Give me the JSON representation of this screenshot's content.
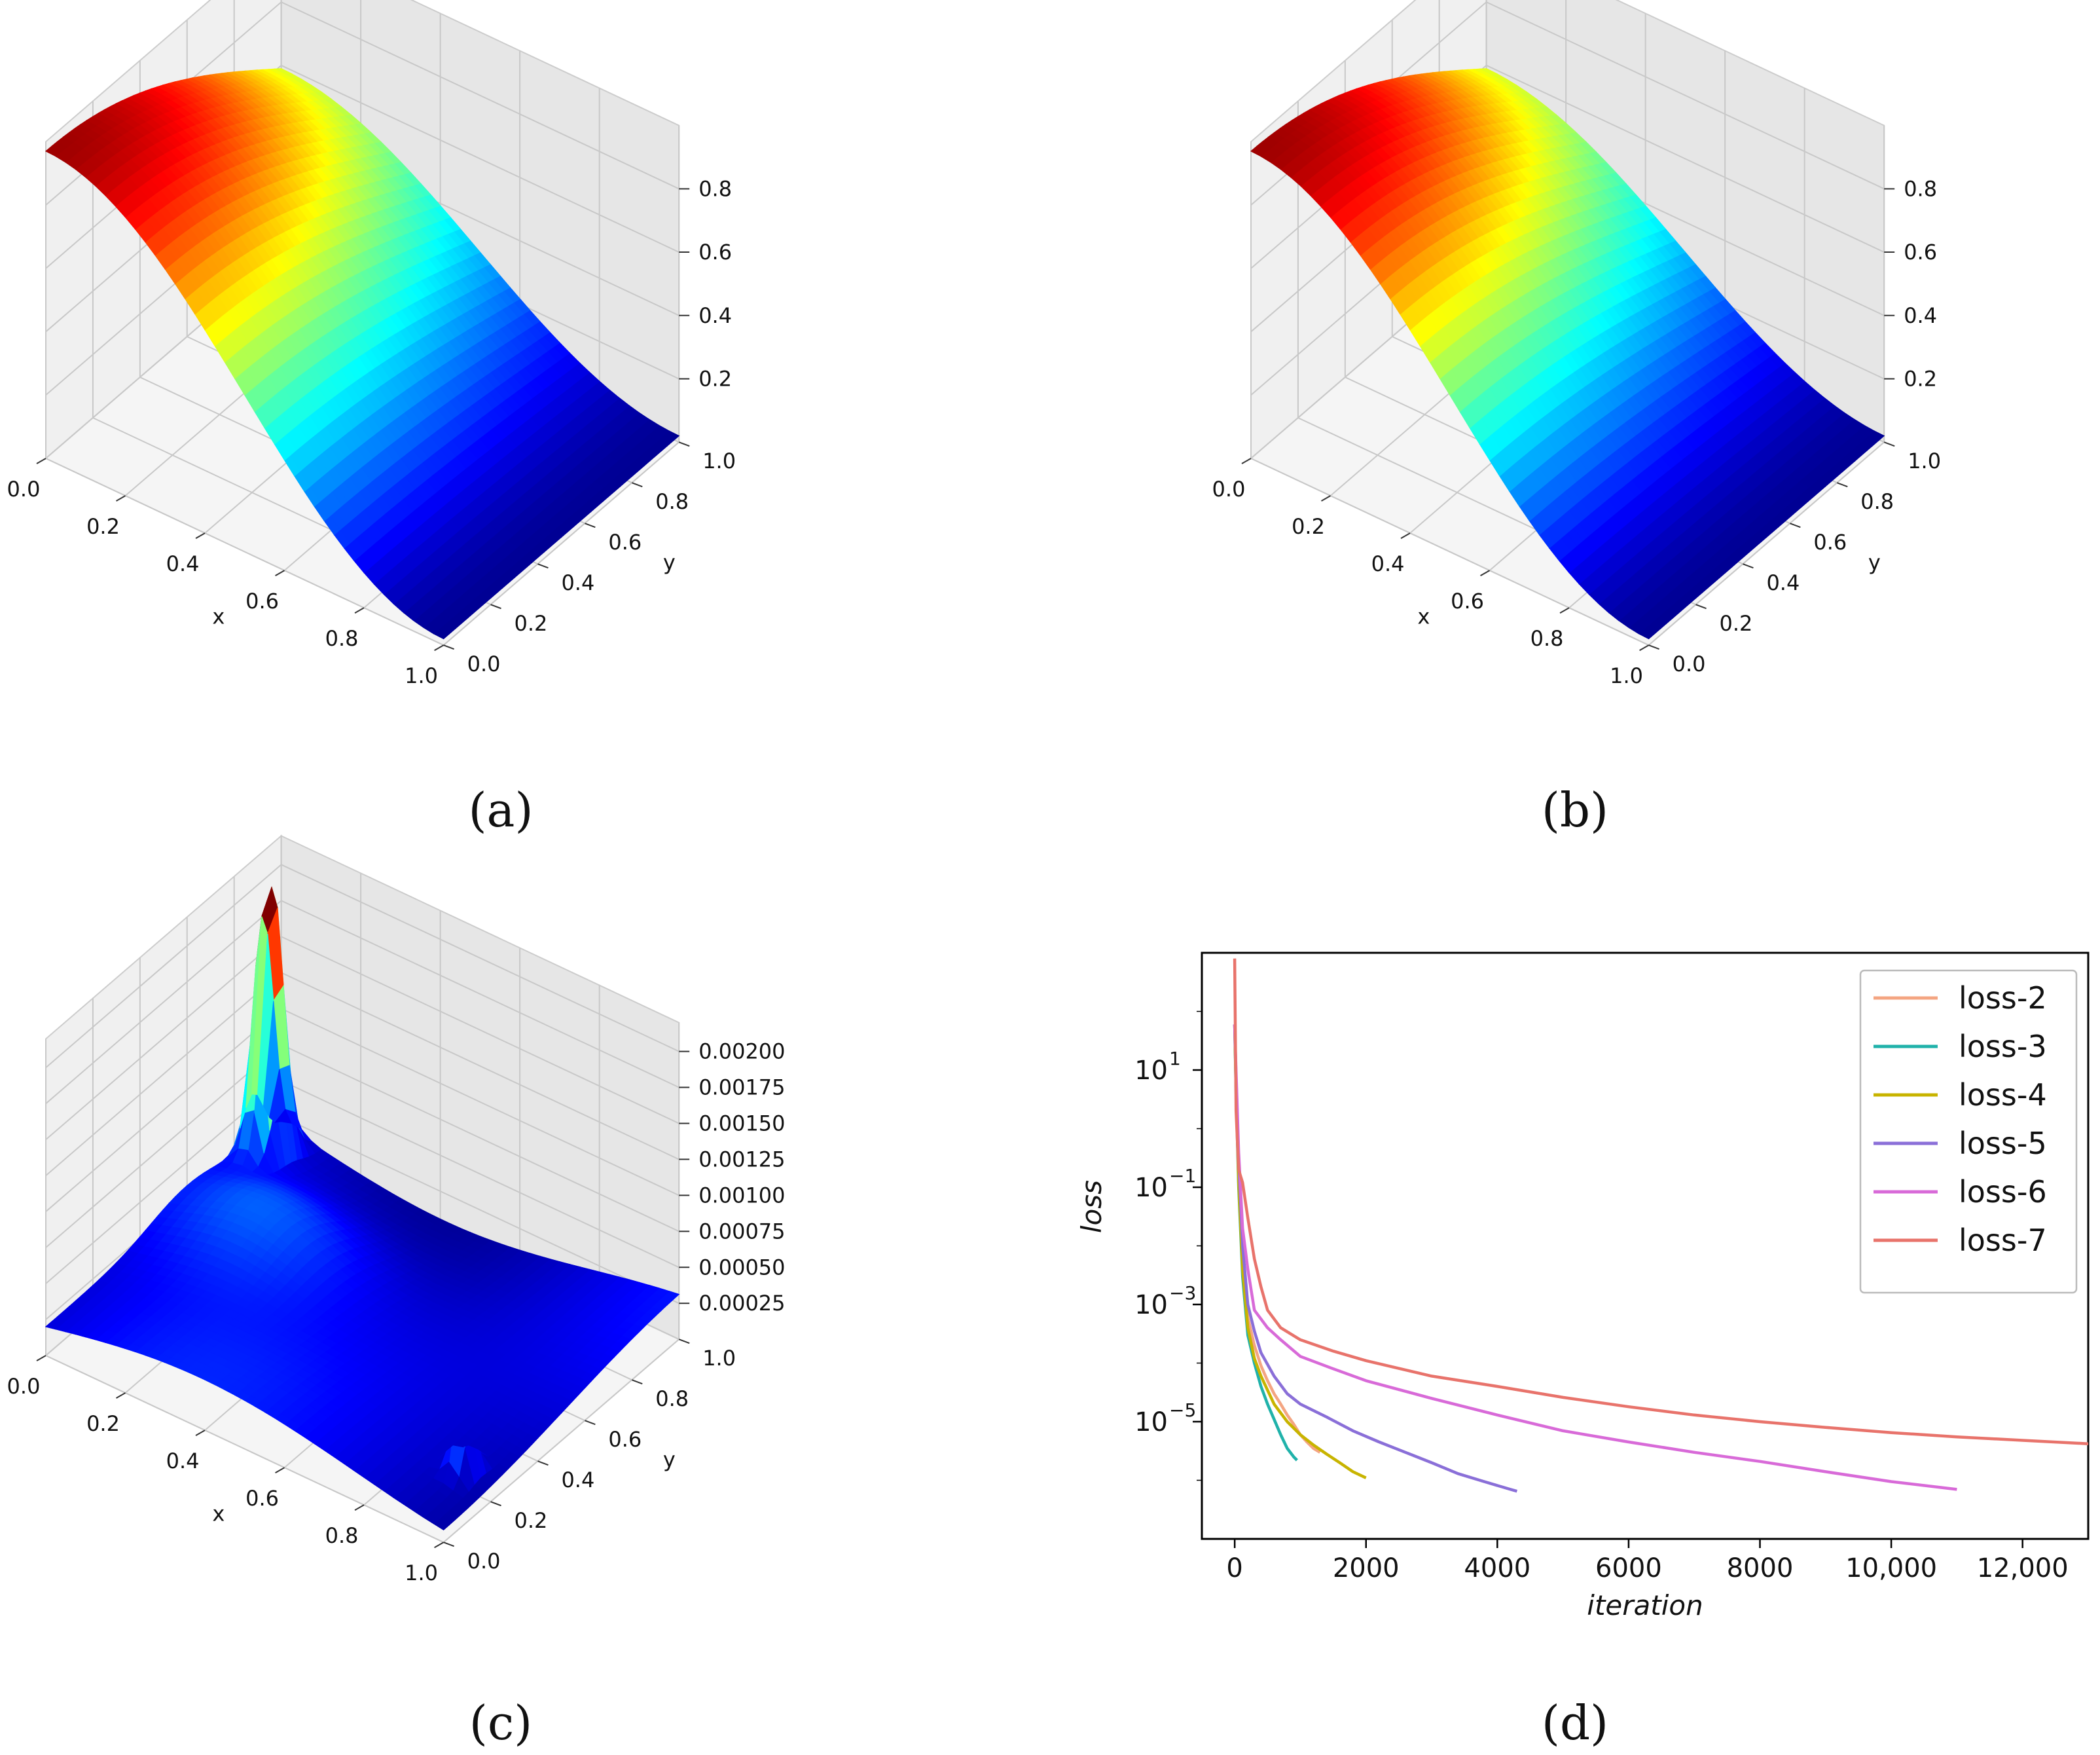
{
  "panels": {
    "a": {
      "caption": "(a)",
      "xlabel": "x",
      "ylabel": "y",
      "xticks": [
        "0.0",
        "0.2",
        "0.4",
        "0.6",
        "0.8",
        "1.0"
      ],
      "yticks": [
        "0.0",
        "0.2",
        "0.4",
        "0.6",
        "0.8",
        "1.0"
      ],
      "zticks": [
        "0.2",
        "0.4",
        "0.6",
        "0.8"
      ]
    },
    "b": {
      "caption": "(b)",
      "xlabel": "x",
      "ylabel": "y",
      "xticks": [
        "0.0",
        "0.2",
        "0.4",
        "0.6",
        "0.8",
        "1.0"
      ],
      "yticks": [
        "0.0",
        "0.2",
        "0.4",
        "0.6",
        "0.8",
        "1.0"
      ],
      "zticks": [
        "0.2",
        "0.4",
        "0.6",
        "0.8"
      ]
    },
    "c": {
      "caption": "(c)",
      "xlabel": "x",
      "ylabel": "y",
      "xticks": [
        "0.0",
        "0.2",
        "0.4",
        "0.6",
        "0.8",
        "1.0"
      ],
      "yticks": [
        "0.0",
        "0.2",
        "0.4",
        "0.6",
        "0.8",
        "1.0"
      ],
      "zticks": [
        "0.00025",
        "0.00050",
        "0.00075",
        "0.00100",
        "0.00125",
        "0.00150",
        "0.00175",
        "0.00200"
      ]
    },
    "d": {
      "caption": "(d)"
    }
  },
  "chart_data": [
    {
      "type": "area",
      "panel": "a",
      "xlabel": "x",
      "ylabel": "y",
      "xlim": [
        0,
        1
      ],
      "ylim": [
        0,
        1
      ],
      "zlim": [
        0,
        1
      ],
      "colormap": "jet"
    },
    {
      "type": "area",
      "panel": "b",
      "xlabel": "x",
      "ylabel": "y",
      "xlim": [
        0,
        1
      ],
      "ylim": [
        0,
        1
      ],
      "zlim": [
        0,
        1
      ],
      "colormap": "jet"
    },
    {
      "type": "area",
      "panel": "c",
      "xlabel": "x",
      "ylabel": "y",
      "xlim": [
        0,
        1
      ],
      "ylim": [
        0,
        1
      ],
      "zlim": [
        0,
        0.0021
      ],
      "zmax": 0.0021,
      "colormap": "jet"
    },
    {
      "type": "line",
      "panel": "d",
      "xlabel": "iteration",
      "ylabel": "loss",
      "xlim": [
        -500,
        13000
      ],
      "ylim": [
        1e-07,
        1000.0
      ],
      "yscale": "log",
      "xticks": [
        "0",
        "2000",
        "4000",
        "6000",
        "8000",
        "10,000",
        "12,000"
      ],
      "xtick_values": [
        0,
        2000,
        4000,
        6000,
        8000,
        10000,
        12000
      ],
      "yticks_base": [
        "10",
        "10",
        "10",
        "10"
      ],
      "yticks_exp": [
        "1",
        "−1",
        "−3",
        "−5"
      ],
      "ytick_values": [
        10,
        0.1,
        0.001,
        1e-05
      ],
      "legend_position": "top-right",
      "series": [
        {
          "name": "loss-2",
          "color": "#f4a582",
          "x": [
            0,
            20,
            60,
            120,
            200,
            300,
            400,
            500,
            600,
            700,
            800,
            900,
            1000,
            1100,
            1200,
            1300
          ],
          "y": [
            60,
            5,
            0.15,
            0.005,
            0.0006,
            0.0002,
            9e-05,
            5e-05,
            3e-05,
            2e-05,
            1.3e-05,
            9e-06,
            6e-06,
            4.5e-06,
            3.5e-06,
            3e-06
          ]
        },
        {
          "name": "loss-3",
          "color": "#20b2aa",
          "x": [
            0,
            20,
            60,
            120,
            200,
            300,
            400,
            500,
            600,
            700,
            800,
            900,
            950
          ],
          "y": [
            60,
            4,
            0.1,
            0.003,
            0.0003,
            0.0001,
            4e-05,
            2e-05,
            1.1e-05,
            6e-06,
            3.5e-06,
            2.5e-06,
            2.2e-06
          ]
        },
        {
          "name": "loss-4",
          "color": "#c8b400",
          "x": [
            0,
            20,
            60,
            120,
            200,
            300,
            400,
            600,
            800,
            1000,
            1200,
            1400,
            1600,
            1800,
            2000
          ],
          "y": [
            60,
            5,
            0.12,
            0.004,
            0.0004,
            0.00012,
            6e-05,
            2e-05,
            1e-05,
            6e-06,
            4e-06,
            2.8e-06,
            2e-06,
            1.4e-06,
            1.1e-06
          ]
        },
        {
          "name": "loss-5",
          "color": "#8a6fd8",
          "x": [
            0,
            20,
            60,
            120,
            200,
            300,
            400,
            600,
            800,
            1000,
            1400,
            1800,
            2200,
            2600,
            3000,
            3400,
            3800,
            4200,
            4300
          ],
          "y": [
            60,
            8,
            0.3,
            0.01,
            0.001,
            0.00035,
            0.00015,
            6e-05,
            3e-05,
            2e-05,
            1.2e-05,
            7e-06,
            4.5e-06,
            3e-06,
            2e-06,
            1.3e-06,
            9.5e-07,
            7e-07,
            6.5e-07
          ]
        },
        {
          "name": "loss-6",
          "color": "#d86ad8",
          "x": [
            0,
            20,
            60,
            120,
            200,
            300,
            500,
            700,
            1000,
            1500,
            2000,
            3000,
            4000,
            5000,
            6000,
            7000,
            8000,
            9000,
            10000,
            11000
          ],
          "y": [
            60,
            10,
            0.4,
            0.02,
            0.004,
            0.0008,
            0.0004,
            0.00025,
            0.00013,
            8e-05,
            5e-05,
            2.5e-05,
            1.3e-05,
            7e-06,
            4.5e-06,
            3e-06,
            2.1e-06,
            1.4e-06,
            9.5e-07,
            7e-07
          ]
        },
        {
          "name": "loss-7",
          "color": "#e8736b",
          "x": [
            0,
            20,
            60,
            120,
            200,
            300,
            400,
            500,
            700,
            1000,
            1500,
            2000,
            3000,
            4000,
            5000,
            6000,
            7000,
            8000,
            9000,
            10000,
            11000,
            12000,
            13000
          ],
          "y": [
            800,
            2,
            0.2,
            0.12,
            0.03,
            0.006,
            0.002,
            0.0008,
            0.0004,
            0.00025,
            0.00016,
            0.00011,
            6e-05,
            4e-05,
            2.6e-05,
            1.8e-05,
            1.3e-05,
            1e-05,
            8e-06,
            6.5e-06,
            5.5e-06,
            4.8e-06,
            4.2e-06
          ]
        }
      ]
    }
  ]
}
